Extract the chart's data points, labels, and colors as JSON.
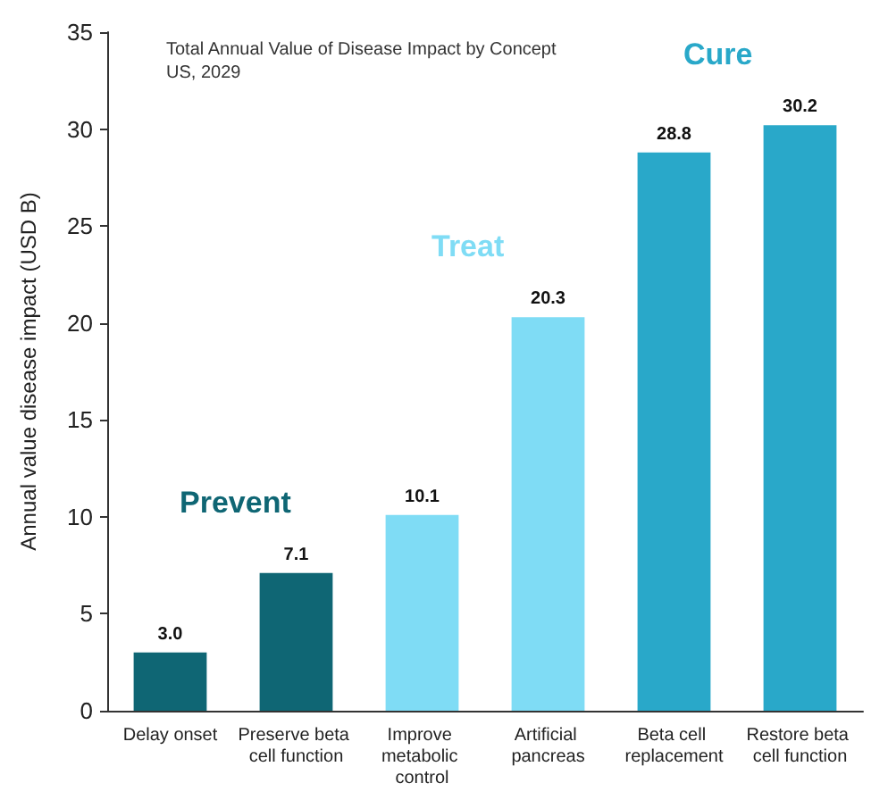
{
  "chart_data": {
    "type": "bar",
    "title": "Total Annual Value of Disease Impact by Concept",
    "subtitle": "US, 2029",
    "ylabel": "Annual value disease impact (USD B)",
    "categories": [
      "Delay onset",
      "Preserve beta cell function",
      "Improve metabolic control",
      "Artificial pancreas",
      "Beta cell replacement",
      "Restore beta cell function"
    ],
    "values": [
      3.0,
      7.1,
      10.1,
      20.3,
      28.8,
      30.2
    ],
    "value_labels": [
      "3.0",
      "7.1",
      "10.1",
      "20.3",
      "28.8",
      "30.2"
    ],
    "colors": [
      "#0f6674",
      "#0f6674",
      "#7fdcf5",
      "#7fdcf5",
      "#29a8c9",
      "#29a8c9"
    ],
    "annotations": [
      "Prevent",
      "Treat",
      "Cure"
    ],
    "ylim": [
      0,
      35
    ],
    "yticks": [
      0,
      5,
      10,
      15,
      20,
      25,
      30,
      35
    ],
    "grid": false
  }
}
